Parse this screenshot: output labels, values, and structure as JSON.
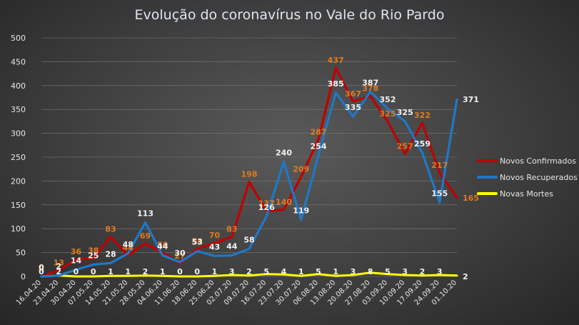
{
  "chart_data": {
    "type": "line",
    "title": "Evolução  do coronavírus  no Vale do Rio Pardo",
    "xlabel": "",
    "ylabel": "",
    "ylim": [
      0,
      500
    ],
    "yticks": [
      0,
      50,
      100,
      150,
      200,
      250,
      300,
      350,
      400,
      450,
      500
    ],
    "grid": true,
    "legend_position": "right",
    "categories": [
      "16.04.20",
      "23.04.20",
      "30.04.20",
      "07.05.20",
      "14.05.20",
      "21.05.20",
      "28.05.20",
      "04.06.20",
      "11.06.20",
      "18.06.20",
      "25.06.20",
      "02.07.20",
      "09.07.20",
      "16.07.20",
      "23.07.20",
      "30.07.20",
      "06.08.20",
      "13.08.20",
      "20.08.20",
      "27.08.20",
      "03.09.20",
      "10.09.20",
      "17.09.20",
      "24.09.20",
      "01.10.20"
    ],
    "series": [
      {
        "name": "Novos Confirmados",
        "color": "#c00000",
        "label_color": "#e07b1e",
        "values": [
          0,
          13,
          36,
          38,
          83,
          44,
          69,
          50,
          27,
          58,
          70,
          83,
          198,
          137,
          140,
          209,
          287,
          437,
          367,
          378,
          325,
          257,
          322,
          217,
          165
        ]
      },
      {
        "name": "Novos Recuperados",
        "color": "#1f78c8",
        "label_color": "#f2f2f2",
        "values": [
          0,
          2,
          14,
          25,
          28,
          48,
          113,
          44,
          30,
          53,
          43,
          44,
          58,
          126,
          240,
          119,
          254,
          385,
          335,
          387,
          352,
          325,
          259,
          155,
          371
        ]
      },
      {
        "name": "Novas Mortes",
        "color": "#ffff00",
        "label_color": "#f2f2f2",
        "values": [
          0,
          2,
          0,
          0,
          1,
          1,
          2,
          1,
          0,
          0,
          1,
          3,
          2,
          5,
          4,
          1,
          5,
          1,
          3,
          8,
          5,
          3,
          2,
          3,
          2
        ]
      }
    ]
  }
}
